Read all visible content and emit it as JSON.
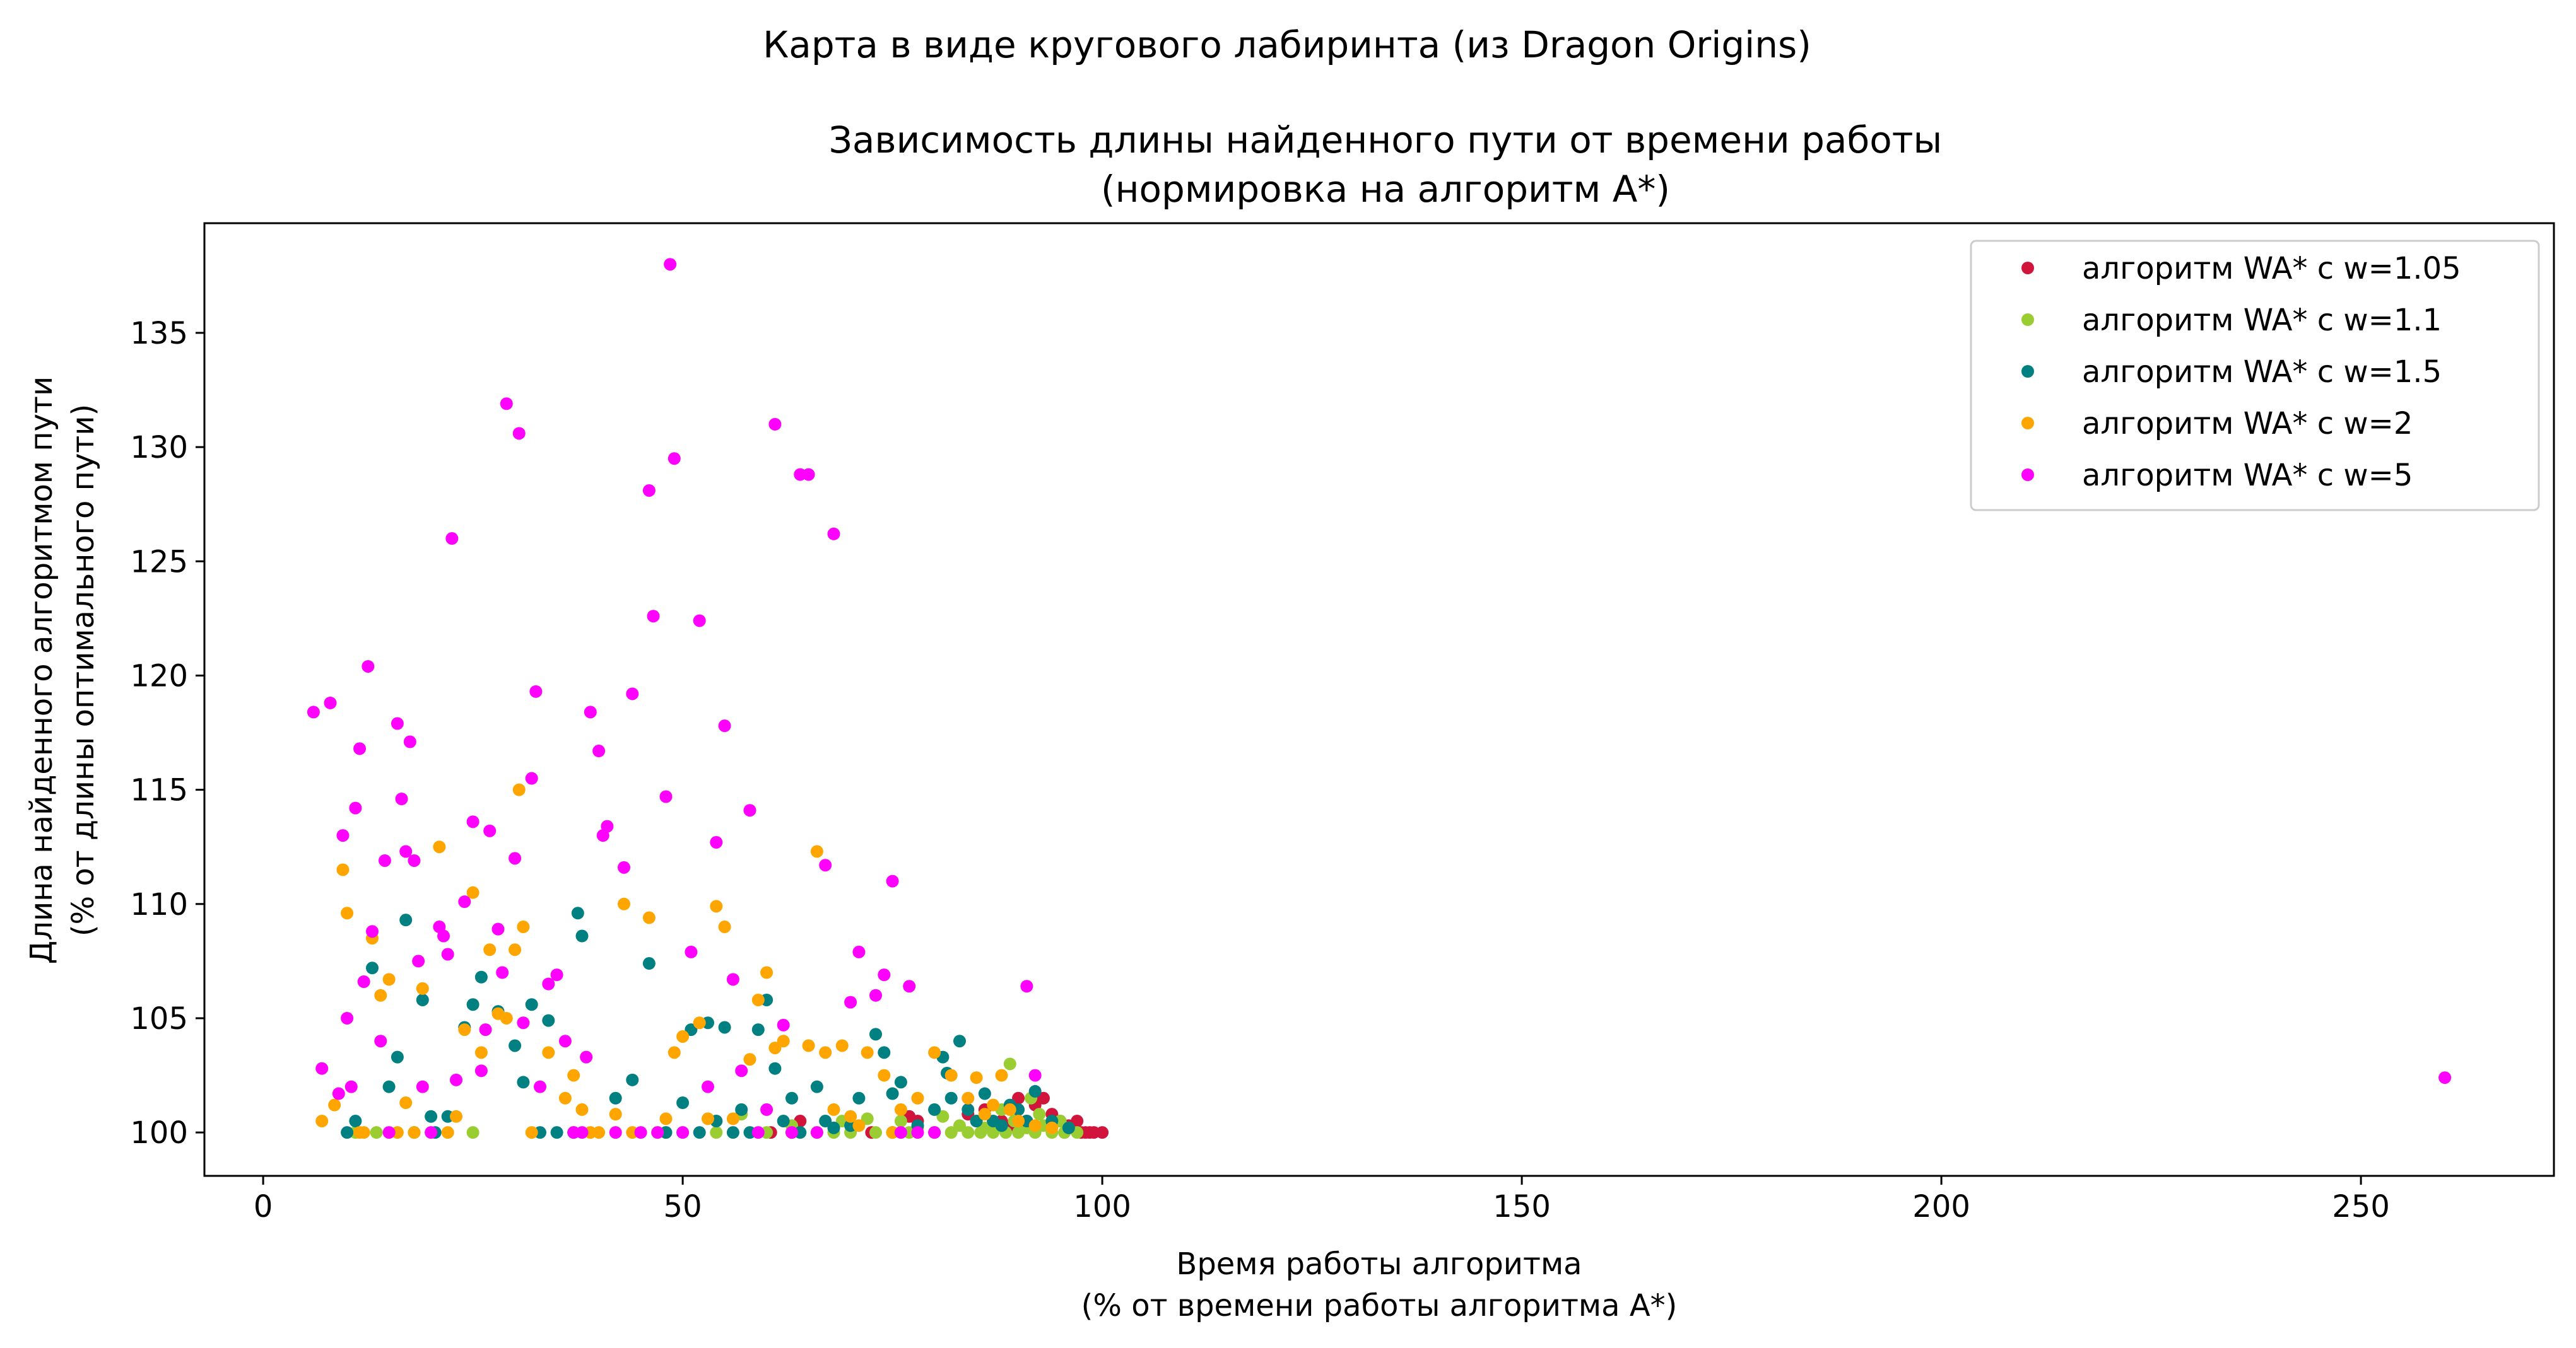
{
  "chart_data": {
    "type": "scatter",
    "suptitle": "Карта в виде кругового лабиринта (из Dragon Origins)",
    "title_line1": "Зависимость длины найденного пути от времени работы",
    "title_line2": "(нормировка на алгоритм A*)",
    "xlabel_line1": "Время работы алгоритма",
    "xlabel_line2": "(% от времени работы алгоритма A*)",
    "ylabel_line1": "Длина найденного алгоритмом пути",
    "ylabel_line2": "(% от длины оптимального пути)",
    "xlim": [
      -7,
      273
    ],
    "ylim": [
      98.1,
      139.8
    ],
    "xticks": [
      0,
      50,
      100,
      150,
      200,
      250
    ],
    "yticks": [
      100,
      105,
      110,
      115,
      120,
      125,
      130,
      135
    ],
    "legend_position": "top-right",
    "series": [
      {
        "name": "алгоритм WA* с w=1.05",
        "color": "#d1143c",
        "points": [
          [
            60.5,
            100
          ],
          [
            63,
            100
          ],
          [
            64,
            100.5
          ],
          [
            72.5,
            100
          ],
          [
            75,
            100
          ],
          [
            77,
            100.7
          ],
          [
            78,
            100.5
          ],
          [
            80,
            100
          ],
          [
            84,
            100.8
          ],
          [
            86,
            101
          ],
          [
            87,
            100.2
          ],
          [
            88,
            100.5
          ],
          [
            89,
            100.3
          ],
          [
            90,
            101.5
          ],
          [
            91,
            100.5
          ],
          [
            92,
            101.2
          ],
          [
            93,
            101.5
          ],
          [
            94,
            100.8
          ],
          [
            95,
            100.5
          ],
          [
            95.5,
            100
          ],
          [
            96,
            100.3
          ],
          [
            97,
            100.5
          ],
          [
            97.5,
            100
          ],
          [
            98,
            100
          ],
          [
            98.5,
            100
          ],
          [
            99,
            100
          ],
          [
            100,
            100
          ]
        ]
      },
      {
        "name": "алгоритм WA* с w=1.1",
        "color": "#9acd32",
        "points": [
          [
            11,
            100
          ],
          [
            13.5,
            100
          ],
          [
            25,
            100
          ],
          [
            48,
            100
          ],
          [
            50,
            100
          ],
          [
            54,
            100
          ],
          [
            57,
            100.8
          ],
          [
            60,
            100
          ],
          [
            63,
            100.3
          ],
          [
            66,
            100
          ],
          [
            68,
            100
          ],
          [
            69,
            100.5
          ],
          [
            70,
            100
          ],
          [
            72,
            100.6
          ],
          [
            73,
            100
          ],
          [
            75,
            100
          ],
          [
            76,
            100.5
          ],
          [
            77,
            100
          ],
          [
            78,
            100.2
          ],
          [
            80,
            100
          ],
          [
            81,
            100.7
          ],
          [
            82,
            100
          ],
          [
            83,
            100.3
          ],
          [
            84,
            100
          ],
          [
            85,
            100.5
          ],
          [
            85.5,
            100
          ],
          [
            86,
            100.2
          ],
          [
            87,
            100
          ],
          [
            88,
            101
          ],
          [
            88.5,
            100
          ],
          [
            89,
            103
          ],
          [
            89.5,
            100.5
          ],
          [
            90,
            100
          ],
          [
            91,
            100.2
          ],
          [
            91.5,
            101.5
          ],
          [
            92,
            100
          ],
          [
            92.5,
            100.8
          ],
          [
            93,
            100.3
          ],
          [
            94,
            100
          ],
          [
            95,
            100.5
          ],
          [
            95.5,
            100
          ],
          [
            96,
            100.2
          ],
          [
            97,
            100
          ]
        ]
      },
      {
        "name": "алгоритм WA* с w=1.5",
        "color": "#008080",
        "points": [
          [
            10,
            100
          ],
          [
            11,
            100.5
          ],
          [
            13,
            107.2
          ],
          [
            15,
            102
          ],
          [
            16,
            103.3
          ],
          [
            17,
            109.3
          ],
          [
            18,
            100
          ],
          [
            19,
            105.8
          ],
          [
            20,
            100.7
          ],
          [
            20.5,
            100
          ],
          [
            22,
            100.7
          ],
          [
            24,
            104.6
          ],
          [
            25,
            105.6
          ],
          [
            26,
            106.8
          ],
          [
            28,
            105.3
          ],
          [
            30,
            103.8
          ],
          [
            31,
            102.2
          ],
          [
            32,
            105.6
          ],
          [
            33,
            100
          ],
          [
            34,
            104.9
          ],
          [
            35,
            100
          ],
          [
            37,
            100
          ],
          [
            37.5,
            109.6
          ],
          [
            38,
            108.6
          ],
          [
            42,
            101.5
          ],
          [
            44,
            102.3
          ],
          [
            46,
            107.4
          ],
          [
            48,
            100
          ],
          [
            50,
            101.3
          ],
          [
            51,
            104.5
          ],
          [
            52,
            100
          ],
          [
            53,
            104.8
          ],
          [
            54,
            100.5
          ],
          [
            55,
            104.6
          ],
          [
            56,
            100
          ],
          [
            57,
            101
          ],
          [
            58,
            100
          ],
          [
            59,
            104.5
          ],
          [
            60,
            105.8
          ],
          [
            61,
            102.8
          ],
          [
            62,
            100.5
          ],
          [
            63,
            101.5
          ],
          [
            64,
            100
          ],
          [
            66,
            102
          ],
          [
            67,
            100.5
          ],
          [
            68,
            100.2
          ],
          [
            70,
            100.3
          ],
          [
            71,
            101.5
          ],
          [
            73,
            104.3
          ],
          [
            74,
            103.5
          ],
          [
            75,
            101.7
          ],
          [
            76,
            102.2
          ],
          [
            78,
            100.3
          ],
          [
            80,
            101
          ],
          [
            81,
            103.3
          ],
          [
            81.5,
            102.6
          ],
          [
            82,
            101.5
          ],
          [
            83,
            104
          ],
          [
            84,
            101
          ],
          [
            85,
            100.5
          ],
          [
            86,
            101.7
          ],
          [
            87,
            100.5
          ],
          [
            88,
            100.3
          ],
          [
            89,
            101.2
          ],
          [
            90,
            101
          ],
          [
            91,
            100.5
          ],
          [
            92,
            101.8
          ],
          [
            94,
            100.5
          ],
          [
            96,
            100.2
          ]
        ]
      },
      {
        "name": "алгоритм WA* с w=2",
        "color": "#ffa500",
        "points": [
          [
            7,
            100.5
          ],
          [
            8.5,
            101.2
          ],
          [
            9.5,
            111.5
          ],
          [
            10,
            109.6
          ],
          [
            11.5,
            100
          ],
          [
            12,
            100
          ],
          [
            13,
            108.5
          ],
          [
            14,
            106
          ],
          [
            15,
            106.7
          ],
          [
            16,
            100
          ],
          [
            17,
            101.3
          ],
          [
            18,
            100
          ],
          [
            19,
            106.3
          ],
          [
            21,
            112.5
          ],
          [
            22,
            100
          ],
          [
            23,
            100.7
          ],
          [
            24,
            104.5
          ],
          [
            25,
            110.5
          ],
          [
            26,
            103.5
          ],
          [
            27,
            108
          ],
          [
            28,
            105.2
          ],
          [
            29,
            105
          ],
          [
            30,
            108
          ],
          [
            30.5,
            115
          ],
          [
            31,
            109
          ],
          [
            32,
            100
          ],
          [
            34,
            103.5
          ],
          [
            36,
            101.5
          ],
          [
            37,
            102.5
          ],
          [
            38,
            101
          ],
          [
            39,
            100
          ],
          [
            40,
            100
          ],
          [
            42,
            100.8
          ],
          [
            43,
            110
          ],
          [
            44,
            100
          ],
          [
            46,
            109.4
          ],
          [
            47,
            100
          ],
          [
            48,
            100.6
          ],
          [
            49,
            103.5
          ],
          [
            50,
            104.2
          ],
          [
            52,
            104.8
          ],
          [
            53,
            100.6
          ],
          [
            54,
            109.9
          ],
          [
            55,
            109
          ],
          [
            56,
            100.6
          ],
          [
            58,
            103.2
          ],
          [
            59,
            105.8
          ],
          [
            60,
            107
          ],
          [
            61,
            103.7
          ],
          [
            62,
            104
          ],
          [
            65,
            103.8
          ],
          [
            66,
            112.3
          ],
          [
            67,
            103.5
          ],
          [
            68,
            101
          ],
          [
            69,
            103.8
          ],
          [
            70,
            100.7
          ],
          [
            71,
            100.3
          ],
          [
            72,
            103.5
          ],
          [
            74,
            102.5
          ],
          [
            75,
            100
          ],
          [
            76,
            101
          ],
          [
            78,
            101.5
          ],
          [
            80,
            103.5
          ],
          [
            82,
            102.5
          ],
          [
            84,
            101.5
          ],
          [
            85,
            102.4
          ],
          [
            86,
            100.8
          ],
          [
            87,
            101.2
          ],
          [
            88,
            102.5
          ],
          [
            89,
            101
          ],
          [
            90,
            100.5
          ],
          [
            92,
            100.3
          ],
          [
            94,
            100.2
          ]
        ]
      },
      {
        "name": "алгоритм WA* с w=5",
        "color": "#ff00ff",
        "points": [
          [
            6,
            118.4
          ],
          [
            7,
            102.8
          ],
          [
            8,
            118.8
          ],
          [
            9,
            101.7
          ],
          [
            9.5,
            113
          ],
          [
            10,
            105
          ],
          [
            10.5,
            102
          ],
          [
            11,
            114.2
          ],
          [
            11.5,
            116.8
          ],
          [
            12,
            106.6
          ],
          [
            12.5,
            120.4
          ],
          [
            13,
            108.8
          ],
          [
            14,
            104
          ],
          [
            14.5,
            111.9
          ],
          [
            15,
            100
          ],
          [
            16,
            117.9
          ],
          [
            16.5,
            114.6
          ],
          [
            17,
            112.3
          ],
          [
            17.5,
            117.1
          ],
          [
            18,
            111.9
          ],
          [
            18.5,
            107.5
          ],
          [
            19,
            102
          ],
          [
            20,
            100
          ],
          [
            21,
            109
          ],
          [
            21.5,
            108.6
          ],
          [
            22,
            107.8
          ],
          [
            22.5,
            126
          ],
          [
            23,
            102.3
          ],
          [
            24,
            110.1
          ],
          [
            25,
            113.6
          ],
          [
            26,
            102.7
          ],
          [
            26.5,
            104.5
          ],
          [
            27,
            113.2
          ],
          [
            28,
            108.9
          ],
          [
            28.5,
            107
          ],
          [
            29,
            131.9
          ],
          [
            30,
            112
          ],
          [
            30.5,
            130.6
          ],
          [
            31,
            104.8
          ],
          [
            32,
            115.5
          ],
          [
            32.5,
            119.3
          ],
          [
            33,
            102
          ],
          [
            34,
            106.5
          ],
          [
            35,
            106.9
          ],
          [
            36,
            104
          ],
          [
            37,
            100
          ],
          [
            38,
            100
          ],
          [
            38.5,
            103.3
          ],
          [
            39,
            118.4
          ],
          [
            40,
            116.7
          ],
          [
            40.5,
            113
          ],
          [
            41,
            113.4
          ],
          [
            42,
            100
          ],
          [
            43,
            111.6
          ],
          [
            44,
            119.2
          ],
          [
            45,
            100
          ],
          [
            46,
            128.1
          ],
          [
            46.5,
            122.6
          ],
          [
            47,
            100
          ],
          [
            48,
            114.7
          ],
          [
            48.5,
            138
          ],
          [
            49,
            129.5
          ],
          [
            50,
            100
          ],
          [
            51,
            107.9
          ],
          [
            52,
            122.4
          ],
          [
            53,
            102
          ],
          [
            54,
            112.7
          ],
          [
            55,
            117.8
          ],
          [
            56,
            106.7
          ],
          [
            57,
            102.7
          ],
          [
            58,
            114.1
          ],
          [
            59,
            100
          ],
          [
            60,
            101
          ],
          [
            61,
            131
          ],
          [
            62,
            104.7
          ],
          [
            63,
            100
          ],
          [
            64,
            128.8
          ],
          [
            65,
            128.8
          ],
          [
            66,
            100
          ],
          [
            67,
            111.7
          ],
          [
            68,
            126.2
          ],
          [
            70,
            105.7
          ],
          [
            71,
            107.9
          ],
          [
            73,
            106
          ],
          [
            74,
            106.9
          ],
          [
            75,
            111
          ],
          [
            76,
            100
          ],
          [
            77,
            106.4
          ],
          [
            78,
            100
          ],
          [
            80,
            100
          ],
          [
            91,
            106.4
          ],
          [
            92,
            102.5
          ],
          [
            260,
            102.4
          ]
        ]
      }
    ]
  }
}
